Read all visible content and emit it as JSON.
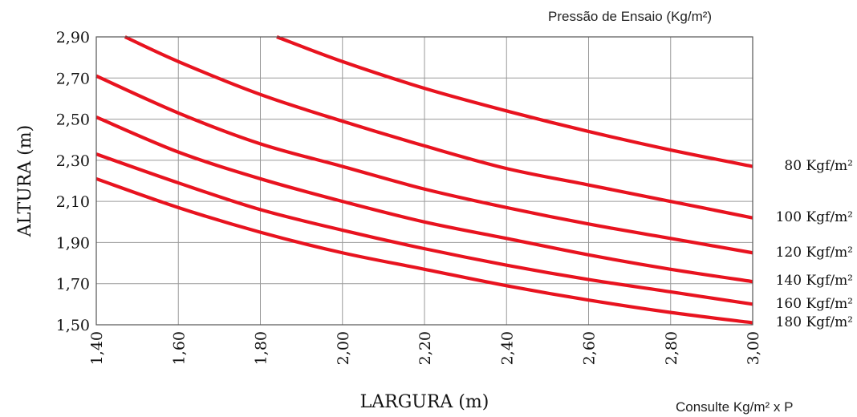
{
  "chart_data": {
    "type": "line",
    "title": "Pressão de Ensaio (Kg/m²)",
    "xlabel": "LARGURA (m)",
    "ylabel": "ALTURA (m)",
    "xlim": [
      1.4,
      3.0
    ],
    "ylim": [
      1.5,
      2.9
    ],
    "x_ticks": [
      "1,40",
      "1,60",
      "1,80",
      "2,00",
      "2,20",
      "2,40",
      "2,60",
      "2,80",
      "3,00"
    ],
    "y_ticks": [
      "2,90",
      "2,70",
      "2,50",
      "2,30",
      "2,10",
      "1,90",
      "1,70",
      "1,50"
    ],
    "grid": true,
    "line_color": "#e8131f",
    "series": [
      {
        "name": "80 Kgf/m²",
        "x": [
          1.84,
          2.0,
          2.2,
          2.4,
          2.6,
          2.8,
          3.0
        ],
        "y": [
          2.9,
          2.78,
          2.65,
          2.54,
          2.44,
          2.35,
          2.27
        ]
      },
      {
        "name": "100 Kgf/m²",
        "x": [
          1.47,
          1.6,
          1.8,
          2.0,
          2.2,
          2.4,
          2.6,
          2.8,
          3.0
        ],
        "y": [
          2.9,
          2.78,
          2.62,
          2.49,
          2.37,
          2.26,
          2.18,
          2.1,
          2.02
        ]
      },
      {
        "name": "120 Kgf/m²",
        "x": [
          1.4,
          1.6,
          1.8,
          2.0,
          2.2,
          2.4,
          2.6,
          2.8,
          3.0
        ],
        "y": [
          2.71,
          2.53,
          2.38,
          2.27,
          2.16,
          2.07,
          1.99,
          1.92,
          1.85
        ]
      },
      {
        "name": "140 Kgf/m²",
        "x": [
          1.4,
          1.6,
          1.8,
          2.0,
          2.2,
          2.4,
          2.6,
          2.8,
          3.0
        ],
        "y": [
          2.51,
          2.34,
          2.21,
          2.1,
          2.0,
          1.92,
          1.84,
          1.77,
          1.71
        ]
      },
      {
        "name": "160 Kgf/m²",
        "x": [
          1.4,
          1.6,
          1.8,
          2.0,
          2.2,
          2.4,
          2.6,
          2.8,
          3.0
        ],
        "y": [
          2.33,
          2.19,
          2.06,
          1.96,
          1.87,
          1.79,
          1.72,
          1.66,
          1.6
        ]
      },
      {
        "name": "180 Kgf/m²",
        "x": [
          1.4,
          1.6,
          1.8,
          2.0,
          2.2,
          2.4,
          2.6,
          2.8,
          3.0
        ],
        "y": [
          2.21,
          2.07,
          1.95,
          1.85,
          1.77,
          1.69,
          1.62,
          1.56,
          1.51
        ]
      }
    ]
  },
  "footnote": "Consulte Kg/m² x P"
}
